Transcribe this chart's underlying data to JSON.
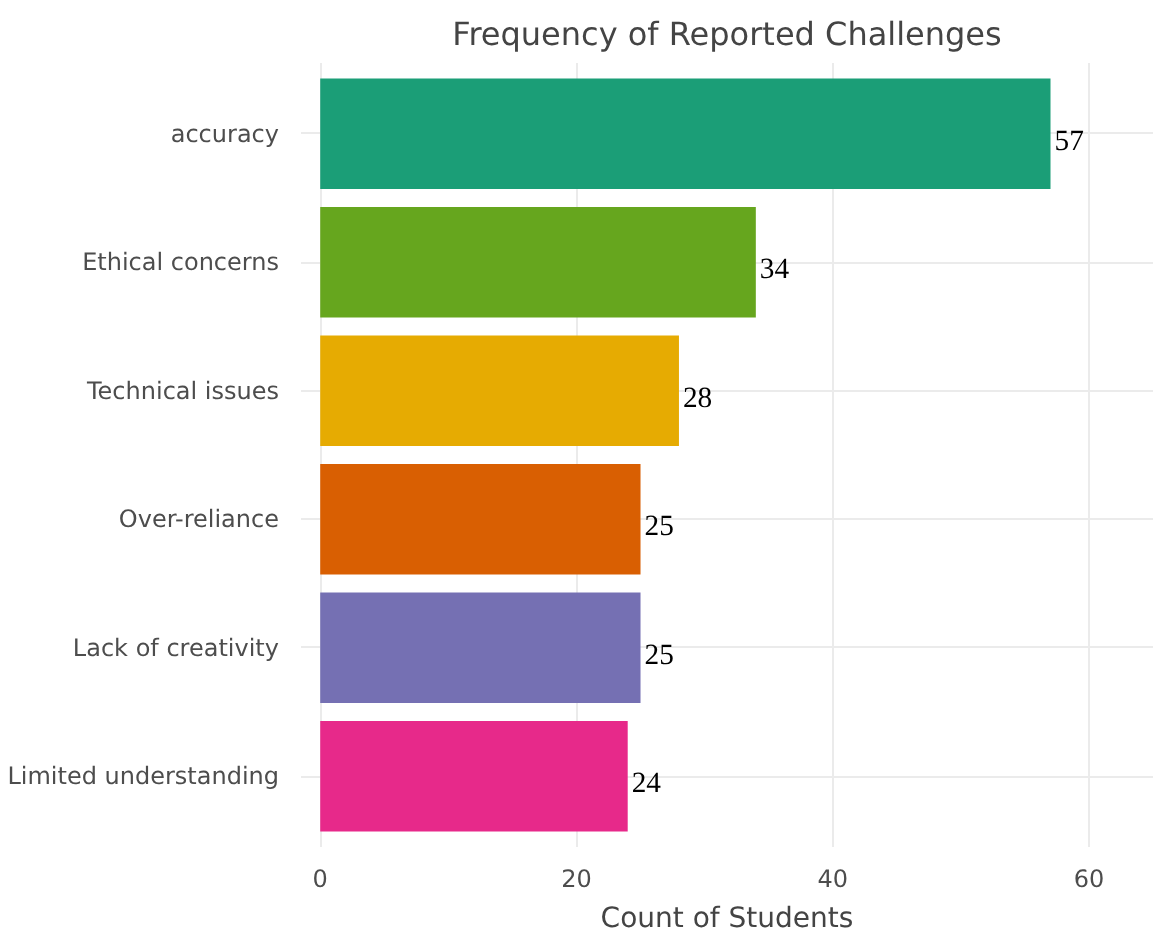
{
  "chart_data": {
    "type": "bar",
    "orientation": "horizontal",
    "title": "Frequency of Reported Challenges",
    "xlabel": "Count of Students",
    "categories": [
      "accuracy",
      "Ethical concerns",
      "Technical issues",
      "Over-reliance",
      "Lack of creativity",
      "Limited understanding"
    ],
    "values": [
      57,
      34,
      28,
      25,
      25,
      24
    ],
    "colors": [
      "#1b9e77",
      "#66a61e",
      "#e6ab02",
      "#d95f02",
      "#7570b3",
      "#e7298a"
    ],
    "xlim": [
      -1.5,
      65
    ],
    "xticks": [
      0,
      20,
      40,
      60
    ],
    "grid": true,
    "data_labels": true
  }
}
